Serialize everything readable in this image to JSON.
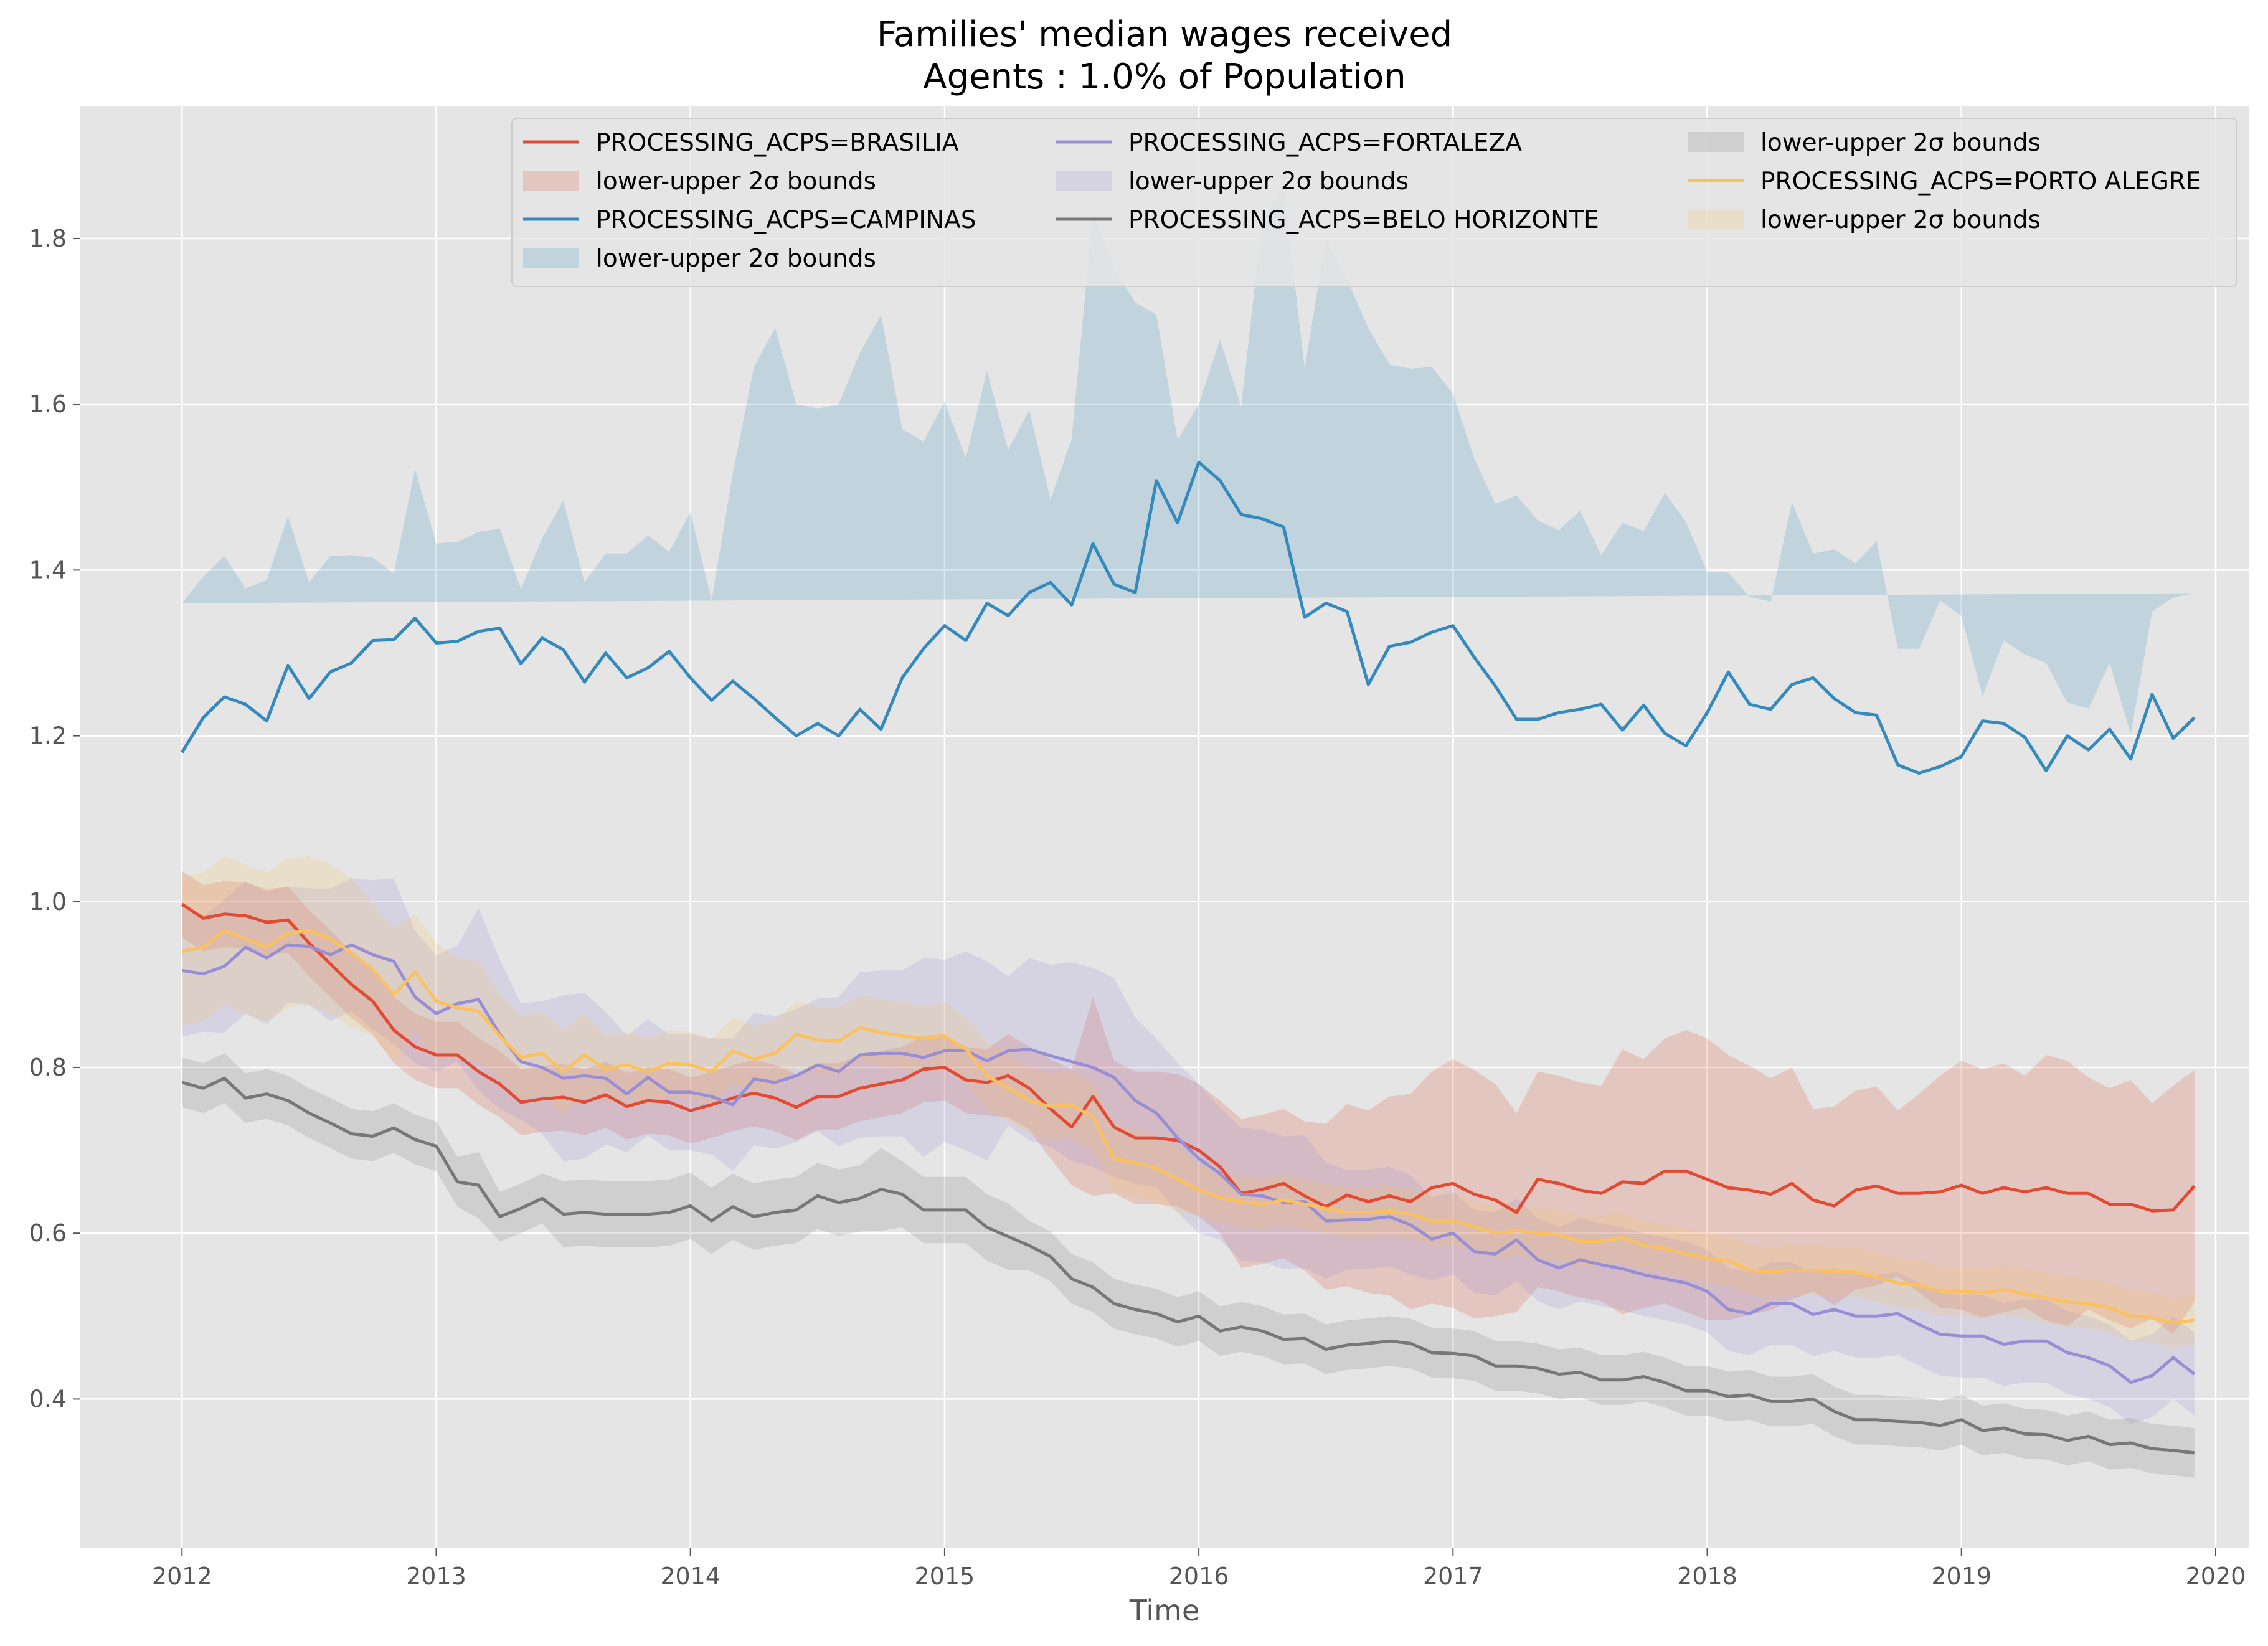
{
  "chart_data": {
    "type": "line",
    "title": "Families' median wages received",
    "subtitle": "Agents : 1.0% of Population",
    "xlabel": "Time",
    "ylabel": "",
    "xlim": [
      2011.6,
      2020.13
    ],
    "ylim": [
      0.22,
      1.96
    ],
    "x_ticks": [
      2012,
      2013,
      2014,
      2015,
      2016,
      2017,
      2018,
      2019,
      2020
    ],
    "x_tick_labels": [
      "2012",
      "2013",
      "2014",
      "2015",
      "2016",
      "2017",
      "2018",
      "2019",
      "2020"
    ],
    "y_ticks": [
      0.4,
      0.6,
      0.8,
      1.0,
      1.2,
      1.4,
      1.6,
      1.8
    ],
    "y_tick_labels": [
      "0.4",
      "0.6",
      "0.8",
      "1.0",
      "1.2",
      "1.4",
      "1.6",
      "1.8"
    ],
    "grid": true,
    "legend_placement": "top",
    "x_start": 2012,
    "x_step": 0.08333,
    "band_label": "lower-upper 2σ bounds",
    "background": "#e5e5e5",
    "series": [
      {
        "name": "PROCESSING_ACPS=BRASILIA",
        "color": "#e24a33",
        "values": [
          0.997,
          0.98,
          0.985,
          0.983,
          0.975,
          0.978,
          0.95,
          0.925,
          0.9,
          0.88,
          0.845,
          0.825,
          0.815,
          0.815,
          0.795,
          0.78,
          0.758,
          0.762,
          0.764,
          0.758,
          0.767,
          0.753,
          0.76,
          0.758,
          0.748,
          0.755,
          0.763,
          0.769,
          0.763,
          0.752,
          0.765,
          0.765,
          0.775,
          0.78,
          0.785,
          0.798,
          0.8,
          0.785,
          0.782,
          0.79,
          0.775,
          0.75,
          0.728,
          0.765,
          0.728,
          0.715,
          0.715,
          0.712,
          0.7,
          0.68,
          0.648,
          0.653,
          0.66,
          0.645,
          0.632,
          0.646,
          0.638,
          0.645,
          0.638,
          0.655,
          0.66,
          0.647,
          0.64,
          0.625,
          0.665,
          0.66,
          0.652,
          0.648,
          0.662,
          0.66,
          0.675,
          0.675,
          0.665,
          0.655,
          0.652,
          0.647,
          0.66,
          0.64,
          0.633,
          0.652,
          0.657,
          0.648,
          0.648,
          0.65,
          0.658,
          0.648,
          0.655,
          0.65,
          0.655,
          0.648,
          0.648,
          0.635,
          0.635,
          0.627,
          0.628,
          0.657
        ],
        "band_halfwidth": [
          0.04,
          0.04,
          0.04,
          0.04,
          0.04,
          0.04,
          0.04,
          0.04,
          0.04,
          0.04,
          0.04,
          0.04,
          0.04,
          0.04,
          0.04,
          0.04,
          0.04,
          0.04,
          0.04,
          0.04,
          0.04,
          0.04,
          0.04,
          0.04,
          0.04,
          0.04,
          0.04,
          0.04,
          0.04,
          0.04,
          0.04,
          0.04,
          0.04,
          0.04,
          0.04,
          0.04,
          0.04,
          0.04,
          0.04,
          0.05,
          0.05,
          0.06,
          0.07,
          0.12,
          0.08,
          0.08,
          0.08,
          0.08,
          0.08,
          0.08,
          0.09,
          0.09,
          0.09,
          0.09,
          0.1,
          0.11,
          0.11,
          0.12,
          0.13,
          0.14,
          0.15,
          0.15,
          0.14,
          0.12,
          0.13,
          0.13,
          0.13,
          0.13,
          0.16,
          0.15,
          0.16,
          0.17,
          0.17,
          0.16,
          0.15,
          0.14,
          0.14,
          0.11,
          0.12,
          0.12,
          0.12,
          0.1,
          0.12,
          0.14,
          0.15,
          0.15,
          0.15,
          0.14,
          0.16,
          0.16,
          0.14,
          0.14,
          0.15,
          0.13,
          0.15,
          0.14
        ]
      },
      {
        "name": "PROCESSING_ACPS=CAMPINAS",
        "color": "#348abd",
        "values": [
          1.18,
          1.222,
          1.247,
          1.238,
          1.218,
          1.285,
          1.245,
          1.277,
          1.288,
          1.315,
          1.316,
          1.342,
          1.312,
          1.314,
          1.326,
          1.33,
          1.287,
          1.318,
          1.304,
          1.265,
          1.3,
          1.27,
          1.282,
          1.302,
          1.27,
          1.243,
          1.266,
          1.245,
          1.222,
          1.2,
          1.215,
          1.2,
          1.232,
          1.208,
          1.27,
          1.305,
          1.333,
          1.315,
          1.36,
          1.345,
          1.373,
          1.385,
          1.358,
          1.432,
          1.383,
          1.373,
          1.508,
          1.457,
          1.53,
          1.508,
          1.467,
          1.462,
          1.452,
          1.343,
          1.36,
          1.35,
          1.262,
          1.308,
          1.313,
          1.325,
          1.333,
          1.295,
          1.26,
          1.22,
          1.22,
          1.228,
          1.232,
          1.238,
          1.207,
          1.237,
          1.203,
          1.188,
          1.228,
          1.277,
          1.238,
          1.232,
          1.262,
          1.27,
          1.245,
          1.228,
          1.225,
          1.165,
          1.155,
          1.163,
          1.175,
          1.218,
          1.215,
          1.198,
          1.158,
          1.2,
          1.183,
          1.208,
          1.172,
          1.25,
          1.197,
          1.222,
          1.183
        ],
        "band_halfwidth": [
          0.18,
          0.17,
          0.17,
          0.14,
          0.17,
          0.18,
          0.14,
          0.14,
          0.13,
          0.1,
          0.08,
          0.18,
          0.12,
          0.12,
          0.12,
          0.12,
          0.09,
          0.12,
          0.18,
          0.12,
          0.12,
          0.15,
          0.16,
          0.12,
          0.2,
          0.12,
          0.25,
          0.4,
          0.47,
          0.4,
          0.38,
          0.4,
          0.43,
          0.5,
          0.3,
          0.25,
          0.27,
          0.22,
          0.28,
          0.2,
          0.22,
          0.1,
          0.2,
          0.4,
          0.38,
          0.35,
          0.2,
          0.1,
          0.07,
          0.17,
          0.13,
          0.36,
          0.41,
          0.3,
          0.44,
          0.4,
          0.43,
          0.34,
          0.33,
          0.32,
          0.28,
          0.24,
          0.22,
          0.27,
          0.24,
          0.22,
          0.24,
          0.18,
          0.25,
          0.21,
          0.29,
          0.27,
          0.17,
          0.12,
          0.13,
          0.13,
          0.22,
          0.15,
          0.18,
          0.18,
          0.21,
          0.14,
          0.15,
          0.2,
          0.17,
          0.03,
          0.1,
          0.1,
          0.13,
          0.04,
          0.05,
          0.08,
          0.03,
          0.1,
          0.17,
          0.15,
          0.14
        ]
      },
      {
        "name": "PROCESSING_ACPS=FORTALEZA",
        "color": "#988ed5",
        "values": [
          0.917,
          0.913,
          0.922,
          0.945,
          0.932,
          0.948,
          0.946,
          0.936,
          0.948,
          0.936,
          0.928,
          0.885,
          0.865,
          0.877,
          0.882,
          0.84,
          0.807,
          0.8,
          0.787,
          0.79,
          0.787,
          0.768,
          0.788,
          0.77,
          0.77,
          0.765,
          0.755,
          0.786,
          0.782,
          0.79,
          0.803,
          0.795,
          0.815,
          0.817,
          0.817,
          0.812,
          0.82,
          0.82,
          0.808,
          0.82,
          0.822,
          0.814,
          0.807,
          0.8,
          0.788,
          0.76,
          0.745,
          0.715,
          0.69,
          0.672,
          0.647,
          0.645,
          0.637,
          0.638,
          0.615,
          0.616,
          0.617,
          0.62,
          0.61,
          0.593,
          0.6,
          0.578,
          0.575,
          0.592,
          0.568,
          0.558,
          0.568,
          0.562,
          0.557,
          0.55,
          0.545,
          0.54,
          0.53,
          0.508,
          0.503,
          0.515,
          0.515,
          0.502,
          0.508,
          0.5,
          0.5,
          0.503,
          0.49,
          0.478,
          0.476,
          0.476,
          0.466,
          0.47,
          0.47,
          0.456,
          0.45,
          0.44,
          0.42,
          0.428,
          0.45,
          0.43
        ],
        "band_halfwidth": [
          0.08,
          0.07,
          0.08,
          0.08,
          0.08,
          0.07,
          0.07,
          0.08,
          0.08,
          0.09,
          0.1,
          0.08,
          0.07,
          0.07,
          0.11,
          0.09,
          0.07,
          0.08,
          0.1,
          0.1,
          0.08,
          0.07,
          0.07,
          0.07,
          0.07,
          0.07,
          0.08,
          0.08,
          0.08,
          0.08,
          0.08,
          0.09,
          0.1,
          0.1,
          0.1,
          0.12,
          0.11,
          0.12,
          0.12,
          0.09,
          0.11,
          0.11,
          0.12,
          0.12,
          0.12,
          0.1,
          0.09,
          0.09,
          0.09,
          0.08,
          0.08,
          0.08,
          0.08,
          0.08,
          0.07,
          0.06,
          0.06,
          0.06,
          0.06,
          0.05,
          0.05,
          0.05,
          0.05,
          0.05,
          0.05,
          0.05,
          0.05,
          0.05,
          0.05,
          0.05,
          0.05,
          0.05,
          0.05,
          0.05,
          0.05,
          0.05,
          0.05,
          0.05,
          0.05,
          0.05,
          0.05,
          0.05,
          0.05,
          0.05,
          0.05,
          0.05,
          0.05,
          0.05,
          0.05,
          0.05,
          0.05,
          0.05,
          0.05,
          0.05,
          0.05,
          0.05
        ]
      },
      {
        "name": "PROCESSING_ACPS=BELO HORIZONTE",
        "color": "#777777",
        "values": [
          0.782,
          0.775,
          0.787,
          0.763,
          0.768,
          0.76,
          0.745,
          0.733,
          0.72,
          0.717,
          0.727,
          0.713,
          0.705,
          0.662,
          0.658,
          0.62,
          0.63,
          0.642,
          0.623,
          0.625,
          0.623,
          0.623,
          0.623,
          0.625,
          0.633,
          0.615,
          0.632,
          0.62,
          0.625,
          0.628,
          0.645,
          0.637,
          0.642,
          0.653,
          0.647,
          0.628,
          0.628,
          0.628,
          0.607,
          0.596,
          0.585,
          0.572,
          0.545,
          0.535,
          0.515,
          0.508,
          0.503,
          0.493,
          0.5,
          0.482,
          0.487,
          0.482,
          0.472,
          0.473,
          0.46,
          0.465,
          0.467,
          0.47,
          0.467,
          0.456,
          0.455,
          0.452,
          0.44,
          0.44,
          0.437,
          0.43,
          0.432,
          0.423,
          0.423,
          0.427,
          0.42,
          0.41,
          0.41,
          0.403,
          0.405,
          0.397,
          0.397,
          0.4,
          0.385,
          0.375,
          0.375,
          0.373,
          0.372,
          0.368,
          0.375,
          0.362,
          0.365,
          0.358,
          0.357,
          0.35,
          0.355,
          0.345,
          0.347,
          0.34,
          0.338,
          0.335
        ],
        "band_halfwidth": [
          0.03,
          0.03,
          0.03,
          0.03,
          0.03,
          0.03,
          0.03,
          0.03,
          0.03,
          0.03,
          0.03,
          0.03,
          0.03,
          0.03,
          0.04,
          0.03,
          0.03,
          0.03,
          0.04,
          0.04,
          0.04,
          0.04,
          0.04,
          0.04,
          0.04,
          0.04,
          0.04,
          0.04,
          0.04,
          0.04,
          0.04,
          0.04,
          0.04,
          0.05,
          0.04,
          0.04,
          0.04,
          0.04,
          0.04,
          0.04,
          0.03,
          0.03,
          0.03,
          0.03,
          0.03,
          0.03,
          0.03,
          0.03,
          0.03,
          0.03,
          0.03,
          0.03,
          0.03,
          0.03,
          0.03,
          0.03,
          0.03,
          0.03,
          0.03,
          0.03,
          0.03,
          0.03,
          0.03,
          0.03,
          0.03,
          0.03,
          0.03,
          0.03,
          0.03,
          0.03,
          0.03,
          0.03,
          0.03,
          0.03,
          0.03,
          0.03,
          0.03,
          0.03,
          0.03,
          0.03,
          0.03,
          0.03,
          0.03,
          0.03,
          0.03,
          0.03,
          0.03,
          0.03,
          0.03,
          0.03,
          0.03,
          0.03,
          0.03,
          0.03,
          0.03,
          0.03
        ]
      },
      {
        "name": "PROCESSING_ACPS=PORTO ALEGRE",
        "color": "#fbc15e",
        "values": [
          0.94,
          0.945,
          0.965,
          0.955,
          0.945,
          0.962,
          0.965,
          0.955,
          0.938,
          0.918,
          0.888,
          0.915,
          0.88,
          0.872,
          0.868,
          0.838,
          0.812,
          0.817,
          0.795,
          0.815,
          0.798,
          0.803,
          0.795,
          0.805,
          0.803,
          0.795,
          0.82,
          0.81,
          0.817,
          0.84,
          0.833,
          0.832,
          0.848,
          0.842,
          0.838,
          0.835,
          0.838,
          0.822,
          0.79,
          0.775,
          0.76,
          0.753,
          0.755,
          0.74,
          0.69,
          0.685,
          0.678,
          0.665,
          0.652,
          0.643,
          0.638,
          0.635,
          0.64,
          0.635,
          0.63,
          0.625,
          0.625,
          0.627,
          0.623,
          0.615,
          0.615,
          0.608,
          0.6,
          0.603,
          0.6,
          0.598,
          0.59,
          0.59,
          0.595,
          0.585,
          0.582,
          0.575,
          0.57,
          0.567,
          0.555,
          0.553,
          0.555,
          0.555,
          0.553,
          0.553,
          0.547,
          0.54,
          0.537,
          0.53,
          0.53,
          0.528,
          0.532,
          0.527,
          0.522,
          0.517,
          0.515,
          0.51,
          0.5,
          0.498,
          0.492,
          0.495
        ],
        "band_halfwidth": [
          0.09,
          0.09,
          0.09,
          0.09,
          0.09,
          0.09,
          0.09,
          0.09,
          0.09,
          0.08,
          0.08,
          0.07,
          0.07,
          0.06,
          0.06,
          0.05,
          0.05,
          0.05,
          0.05,
          0.05,
          0.04,
          0.04,
          0.04,
          0.04,
          0.04,
          0.04,
          0.04,
          0.04,
          0.04,
          0.04,
          0.04,
          0.04,
          0.04,
          0.04,
          0.04,
          0.04,
          0.04,
          0.04,
          0.04,
          0.04,
          0.04,
          0.04,
          0.04,
          0.04,
          0.04,
          0.04,
          0.04,
          0.04,
          0.03,
          0.03,
          0.03,
          0.03,
          0.03,
          0.03,
          0.03,
          0.03,
          0.03,
          0.03,
          0.03,
          0.03,
          0.03,
          0.03,
          0.03,
          0.03,
          0.03,
          0.03,
          0.03,
          0.03,
          0.03,
          0.03,
          0.03,
          0.03,
          0.03,
          0.03,
          0.03,
          0.03,
          0.03,
          0.03,
          0.03,
          0.03,
          0.03,
          0.03,
          0.03,
          0.03,
          0.03,
          0.03,
          0.03,
          0.03,
          0.03,
          0.03,
          0.03,
          0.03,
          0.03,
          0.03,
          0.03,
          0.03
        ]
      }
    ],
    "legend": [
      {
        "label": "PROCESSING_ACPS=BRASILIA",
        "kind": "line",
        "color": "#e24a33"
      },
      {
        "label": "lower-upper 2σ bounds",
        "kind": "band",
        "color": "#e24a33"
      },
      {
        "label": "PROCESSING_ACPS=CAMPINAS",
        "kind": "line",
        "color": "#348abd"
      },
      {
        "label": "lower-upper 2σ bounds",
        "kind": "band",
        "color": "#348abd"
      },
      {
        "label": "PROCESSING_ACPS=FORTALEZA",
        "kind": "line",
        "color": "#988ed5"
      },
      {
        "label": "lower-upper 2σ bounds",
        "kind": "band",
        "color": "#988ed5"
      },
      {
        "label": "PROCESSING_ACPS=BELO HORIZONTE",
        "kind": "line",
        "color": "#777777"
      },
      {
        "label": "lower-upper 2σ bounds",
        "kind": "band",
        "color": "#777777"
      },
      {
        "label": "PROCESSING_ACPS=PORTO ALEGRE",
        "kind": "line",
        "color": "#fbc15e"
      },
      {
        "label": "lower-upper 2σ bounds",
        "kind": "band",
        "color": "#fbc15e"
      }
    ]
  }
}
